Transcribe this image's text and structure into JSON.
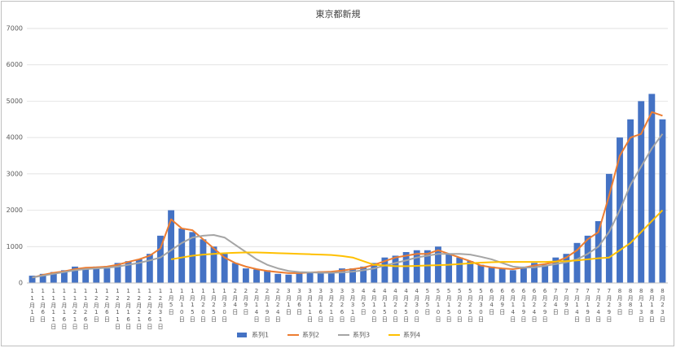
{
  "chart_data": {
    "type": "bar-line",
    "title": "東京都新規",
    "categories": [
      "11月1日",
      "11月6日",
      "11月11日",
      "11月16日",
      "11月21日",
      "11月26日",
      "12月1日",
      "12月6日",
      "12月11日",
      "12月16日",
      "12月21日",
      "12月26日",
      "12月31日",
      "1月5日",
      "1月10日",
      "1月15日",
      "1月20日",
      "1月25日",
      "1月30日",
      "2月4日",
      "2月9日",
      "2月14日",
      "2月19日",
      "2月24日",
      "3月1日",
      "3月6日",
      "3月11日",
      "3月16日",
      "3月21日",
      "3月26日",
      "3月31日",
      "4月5日",
      "4月10日",
      "4月15日",
      "4月20日",
      "4月25日",
      "4月30日",
      "5月5日",
      "5月10日",
      "5月15日",
      "5月20日",
      "5月25日",
      "5月30日",
      "6月4日",
      "6月9日",
      "6月14日",
      "6月19日",
      "6月24日",
      "6月29日",
      "7月4日",
      "7月9日",
      "7月14日",
      "7月19日",
      "7月24日",
      "7月29日",
      "8月3日",
      "8月8日",
      "8月13日",
      "8月18日",
      "8月23日"
    ],
    "series": [
      {
        "name": "系列1",
        "color": "#4472c4",
        "kind": "bar",
        "values": [
          200,
          250,
          300,
          350,
          450,
          400,
          450,
          400,
          550,
          600,
          650,
          800,
          1300,
          2000,
          1500,
          1400,
          1200,
          1000,
          800,
          550,
          400,
          370,
          350,
          250,
          230,
          300,
          300,
          320,
          300,
          400,
          400,
          450,
          550,
          700,
          750,
          850,
          900,
          900,
          1000,
          800,
          700,
          600,
          500,
          450,
          400,
          350,
          450,
          550,
          500,
          700,
          800,
          1100,
          1300,
          1700,
          3000,
          4000,
          4500,
          5000,
          5200,
          4500
        ]
      },
      {
        "name": "系列2",
        "color": "#ed7d31",
        "kind": "line",
        "values": [
          150,
          220,
          280,
          320,
          380,
          420,
          430,
          450,
          500,
          580,
          650,
          750,
          950,
          1750,
          1500,
          1450,
          1200,
          950,
          700,
          550,
          450,
          380,
          330,
          300,
          270,
          270,
          290,
          300,
          310,
          340,
          380,
          420,
          500,
          600,
          700,
          750,
          800,
          800,
          900,
          800,
          700,
          600,
          480,
          430,
          400,
          380,
          420,
          480,
          520,
          580,
          700,
          900,
          1200,
          1400,
          2400,
          3500,
          4000,
          4100,
          4700,
          4600
        ]
      },
      {
        "name": "系列3",
        "color": "#a5a5a5",
        "kind": "line",
        "values": [
          150,
          200,
          250,
          300,
          350,
          380,
          400,
          420,
          450,
          500,
          550,
          620,
          700,
          900,
          1100,
          1250,
          1300,
          1320,
          1250,
          1050,
          850,
          650,
          500,
          400,
          330,
          300,
          290,
          280,
          280,
          290,
          310,
          350,
          400,
          480,
          550,
          620,
          700,
          750,
          800,
          800,
          800,
          780,
          720,
          650,
          550,
          450,
          420,
          430,
          470,
          520,
          570,
          650,
          800,
          1000,
          1400,
          2000,
          2700,
          3200,
          3700,
          4100
        ]
      },
      {
        "name": "系列4",
        "color": "#ffc000",
        "kind": "line",
        "values": [
          null,
          null,
          null,
          null,
          null,
          null,
          null,
          null,
          null,
          null,
          null,
          null,
          null,
          650,
          700,
          750,
          780,
          800,
          820,
          830,
          840,
          840,
          830,
          820,
          810,
          800,
          790,
          780,
          770,
          740,
          700,
          600,
          500,
          480,
          460,
          460,
          470,
          480,
          490,
          500,
          520,
          540,
          560,
          570,
          580,
          580,
          580,
          580,
          580,
          590,
          600,
          620,
          650,
          680,
          700,
          900,
          1100,
          1400,
          1700,
          2000
        ]
      }
    ],
    "ylim": [
      0,
      7000
    ],
    "yticks": [
      0,
      1000,
      2000,
      3000,
      4000,
      5000,
      6000,
      7000
    ],
    "grid": true,
    "legend": "bottom"
  }
}
